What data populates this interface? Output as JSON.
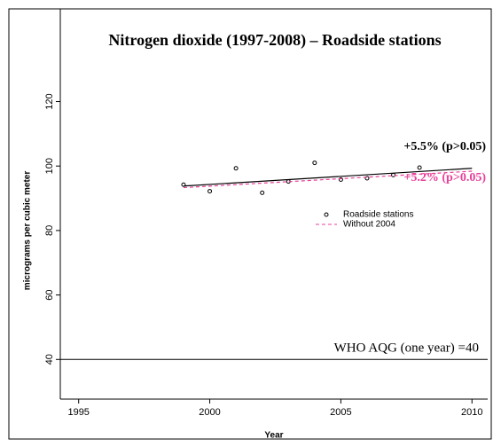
{
  "chart_data": {
    "type": "scatter",
    "title": "Nitrogen dioxide (1997-2008) – Roadside stations",
    "xlabel": "Year",
    "ylabel": "micrograms per cubic meter",
    "xlim": [
      1994.3,
      2010.6
    ],
    "ylim": [
      27.7,
      135
    ],
    "xticks": [
      1995,
      2000,
      2005,
      2010
    ],
    "yticks": [
      40,
      60,
      80,
      100,
      120
    ],
    "series": [
      {
        "name": "Roadside stations",
        "kind": "points",
        "color": "#000000",
        "x": [
          1999,
          2000,
          2001,
          2002,
          2003,
          2004,
          2005,
          2006,
          2007,
          2008
        ],
        "values": [
          94.2,
          92.2,
          99.3,
          91.7,
          95.2,
          101,
          95.8,
          96.2,
          97.2,
          99.5
        ]
      },
      {
        "kind": "solid",
        "color": "#000000",
        "x": [
          1999,
          2010
        ],
        "values": [
          93.8,
          99.3
        ]
      },
      {
        "name": "Without 2004",
        "kind": "dashed",
        "color": "#e8409a",
        "x": [
          1999,
          2010
        ],
        "values": [
          93.3,
          98.4
        ]
      }
    ],
    "reference_line": {
      "value": 40,
      "label": "WHO AQG (one year) =40"
    },
    "annotations": [
      {
        "text": "+5.5% (p>0.05)",
        "color": "#000000"
      },
      {
        "text": "+5.2% (p>0.05)",
        "color": "#e8409a"
      }
    ]
  }
}
